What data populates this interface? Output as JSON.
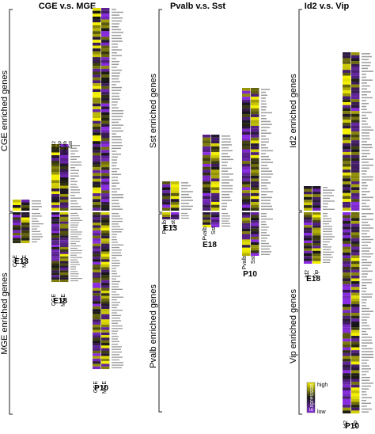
{
  "chart_data": {
    "type": "heatmap",
    "legend": {
      "title": "Expression",
      "high_label": "high",
      "low_label": "low",
      "colors": {
        "high": "#f5f000",
        "mid": "#141414",
        "low": "#8a2be2"
      }
    },
    "panels": [
      {
        "title": "CGE v.s. MGE",
        "upper_group_label": "CGE enriched genes",
        "lower_group_label": "MGE enriched genes",
        "blocks": [
          {
            "stage": "E13",
            "conditions": [
              "CGE",
              "MGE"
            ]
          },
          {
            "stage": "E18",
            "conditions": [
              "CGE",
              "MGE"
            ],
            "extra_labels": [
              "Id2",
              "Vip",
              "Pvalb",
              "Sst"
            ]
          },
          {
            "stage": "P10",
            "conditions": [
              "CGE",
              "MGE"
            ]
          }
        ]
      },
      {
        "title": "Pvalb v.s. Sst",
        "upper_group_label": "Sst enriched genes",
        "lower_group_label": "Pvalb enriched genes",
        "blocks": [
          {
            "stage": "E13",
            "conditions": [
              "Pvalb",
              "Sst"
            ]
          },
          {
            "stage": "E18",
            "conditions": [
              "Pvalb",
              "Sst"
            ]
          },
          {
            "stage": "P10",
            "conditions": [
              "Pvalb",
              "Sst"
            ]
          }
        ]
      },
      {
        "title": "Id2 v.s. Vip",
        "upper_group_label": "Id2 enriched genes",
        "lower_group_label": "Vip enriched genes",
        "blocks": [
          {
            "stage": "E18",
            "conditions": [
              "Id2",
              "Vip"
            ]
          },
          {
            "stage": "P10",
            "conditions": [
              "Id2",
              "Vip"
            ]
          }
        ]
      }
    ]
  }
}
